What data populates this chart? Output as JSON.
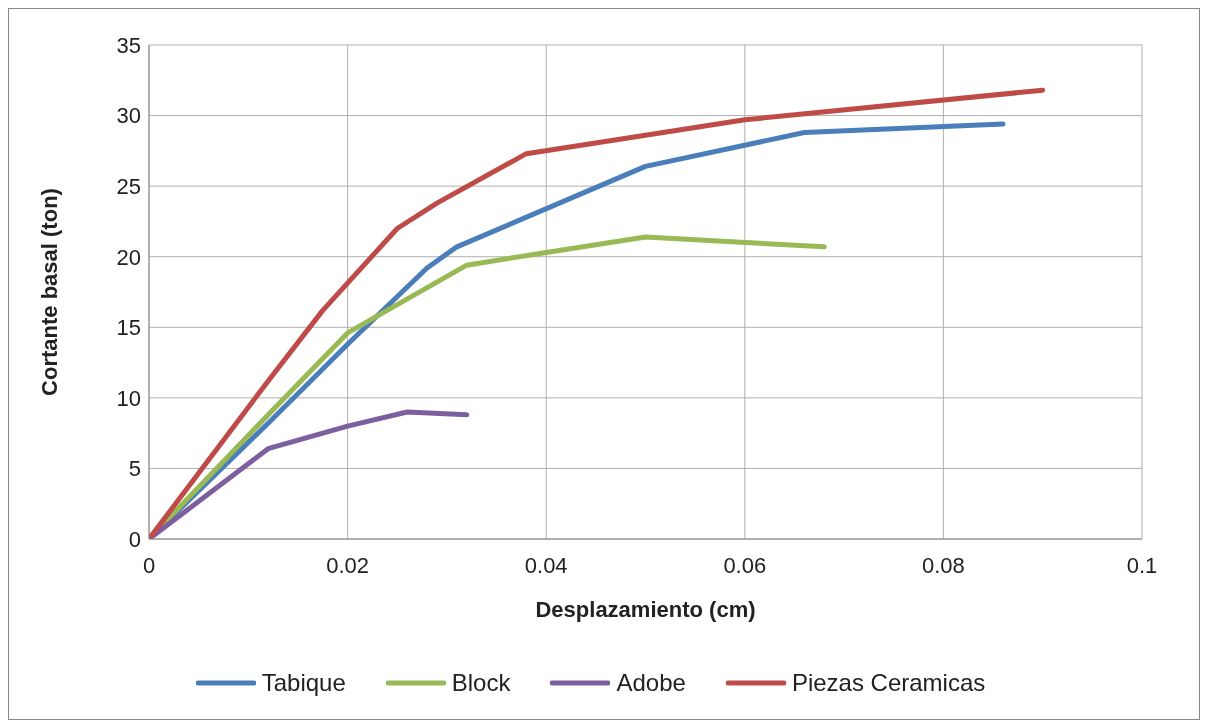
{
  "chart_data": {
    "type": "line",
    "xlabel": "Desplazamiento (cm)",
    "ylabel": "Cortante basal  (ton)",
    "xlim": [
      0,
      0.1
    ],
    "xticks": [
      0,
      0.02,
      0.04,
      0.06,
      0.08,
      0.1
    ],
    "ylim": [
      0,
      35
    ],
    "yticks": [
      0,
      5,
      10,
      15,
      20,
      25,
      30,
      35
    ],
    "grid": true,
    "legend": "bottom",
    "marker": "none",
    "line_style": "solid",
    "series": [
      {
        "name": "Tabique",
        "color": "#4a7ebb",
        "x": [
          0,
          0.012,
          0.02,
          0.028,
          0.031,
          0.05,
          0.066,
          0.086
        ],
        "values": [
          0,
          8.2,
          13.8,
          19.2,
          20.7,
          26.4,
          28.8,
          29.4
        ]
      },
      {
        "name": "Block",
        "color": "#98b954",
        "x": [
          0,
          0.012,
          0.02,
          0.032,
          0.04,
          0.05,
          0.068
        ],
        "values": [
          0,
          8.8,
          14.6,
          19.4,
          20.3,
          21.4,
          20.7
        ]
      },
      {
        "name": "Adobe",
        "color": "#7d5fa0",
        "x": [
          0,
          0.012,
          0.02,
          0.026,
          0.032
        ],
        "values": [
          0,
          6.4,
          8.0,
          9.0,
          8.8
        ]
      },
      {
        "name": "Piezas Ceramicas",
        "color": "#be4b48",
        "x": [
          0,
          0.012,
          0.0175,
          0.025,
          0.029,
          0.038,
          0.05,
          0.06,
          0.09
        ],
        "values": [
          0,
          11.2,
          16.2,
          22,
          23.8,
          27.3,
          28.6,
          29.7,
          31.8
        ]
      }
    ]
  }
}
